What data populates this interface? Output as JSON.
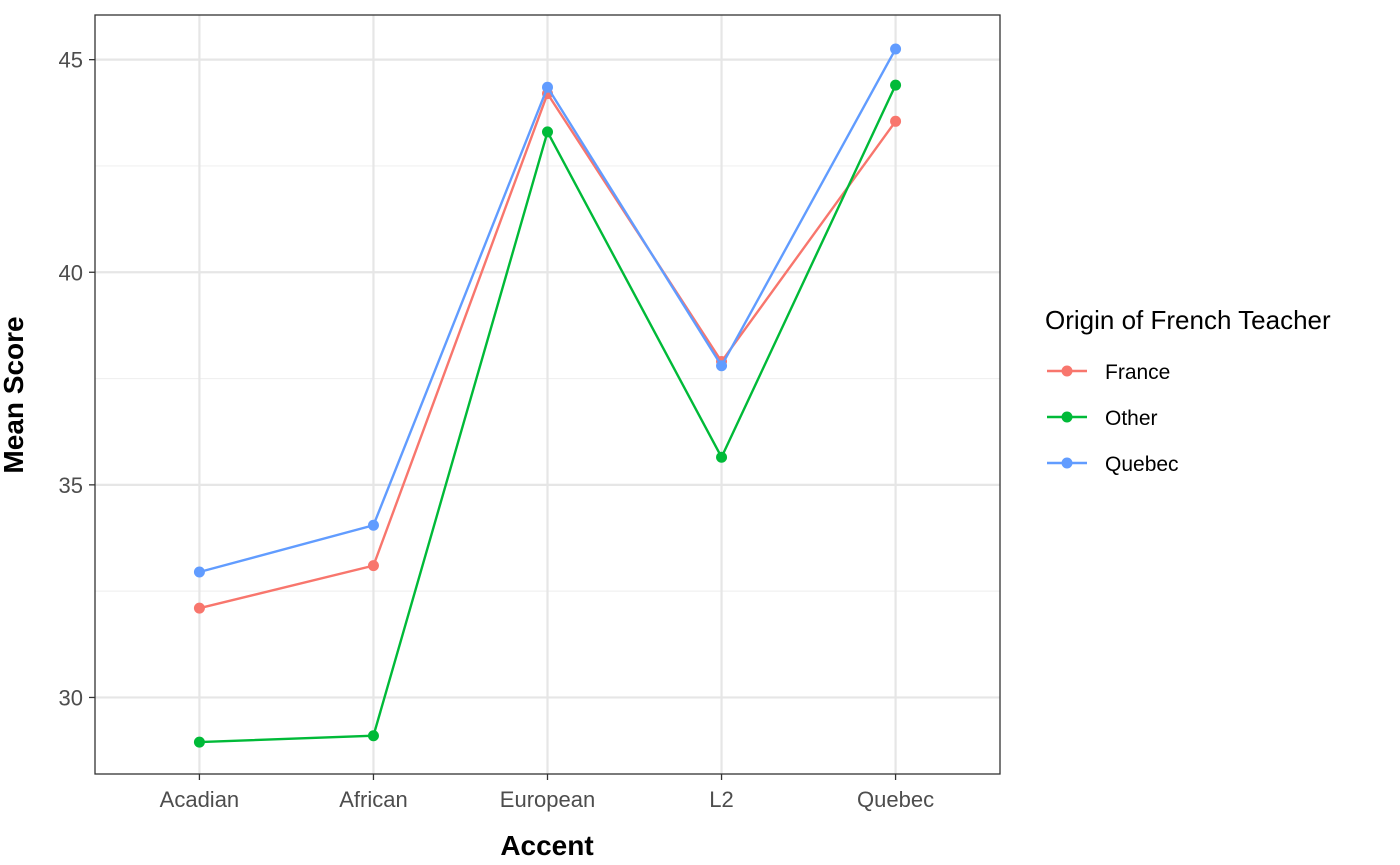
{
  "chart_data": {
    "type": "line",
    "title": "",
    "xlabel": "Accent",
    "ylabel": "Mean Score",
    "categories": [
      "Acadian",
      "African",
      "European",
      "L2",
      "Quebec"
    ],
    "ylim": [
      28.2,
      46.05
    ],
    "yticks": [
      30,
      35,
      40,
      45
    ],
    "grid": true,
    "legend": {
      "title": "Origin of French Teacher",
      "placement": "right"
    },
    "series": [
      {
        "name": "France",
        "color": "#F8766D",
        "values": [
          32.1,
          33.1,
          44.2,
          37.9,
          43.55
        ]
      },
      {
        "name": "Other",
        "color": "#00BA38",
        "values": [
          28.95,
          29.1,
          43.3,
          35.65,
          44.4
        ]
      },
      {
        "name": "Quebec",
        "color": "#619CFF",
        "values": [
          32.95,
          34.05,
          44.35,
          37.8,
          45.25
        ]
      }
    ]
  }
}
